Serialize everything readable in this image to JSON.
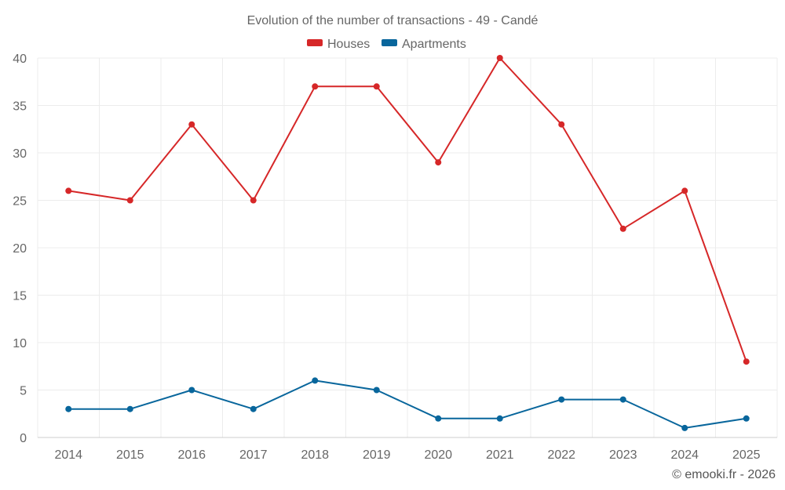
{
  "chart_data": {
    "type": "line",
    "title": "Evolution of the number of transactions - 49 - Candé",
    "xlabel": "",
    "ylabel": "",
    "categories": [
      "2014",
      "2015",
      "2016",
      "2017",
      "2018",
      "2019",
      "2020",
      "2021",
      "2022",
      "2023",
      "2024",
      "2025"
    ],
    "series": [
      {
        "name": "Houses",
        "color": "#d62728",
        "values": [
          26,
          25,
          33,
          25,
          37,
          37,
          29,
          40,
          33,
          22,
          26,
          8
        ]
      },
      {
        "name": "Apartments",
        "color": "#08669c",
        "values": [
          3,
          3,
          5,
          3,
          6,
          5,
          2,
          2,
          4,
          4,
          1,
          2
        ]
      }
    ],
    "ylim": [
      0,
      40
    ],
    "yticks": [
      0,
      5,
      10,
      15,
      20,
      25,
      30,
      35,
      40
    ],
    "grid": true,
    "legend": "top-center"
  },
  "credit": "© emooki.fr - 2026"
}
